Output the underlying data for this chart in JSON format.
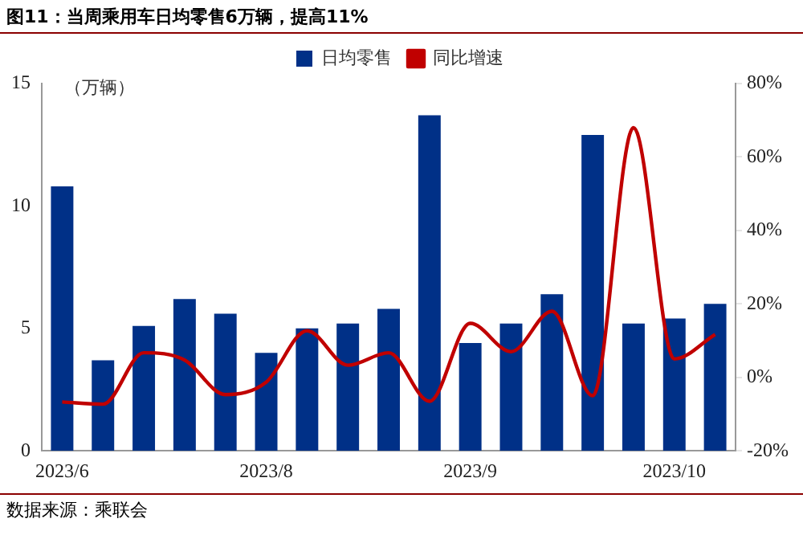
{
  "chart_data": {
    "type": "bar",
    "title": "图11：当周乘用车日均零售6万辆，提高11%",
    "ylabel": "（万辆）",
    "categories": [
      "2023/6",
      null,
      null,
      null,
      null,
      "2023/8",
      null,
      null,
      null,
      null,
      "2023/9",
      null,
      null,
      null,
      null,
      "2023/10",
      null
    ],
    "series": [
      {
        "name": "日均零售",
        "color": "#003087",
        "values": [
          10.8,
          3.7,
          5.1,
          6.2,
          5.6,
          4.0,
          5.0,
          5.2,
          5.8,
          13.7,
          4.4,
          5.2,
          6.4,
          12.9,
          5.2,
          5.4,
          6.0
        ]
      },
      {
        "name": "同比增速",
        "type": "line",
        "axis": "y2",
        "color": "#c00000",
        "values": [
          -6.7,
          -7.3,
          6.7,
          4.7,
          -4.7,
          -1.3,
          12.7,
          3.3,
          6.7,
          -6.5,
          14.7,
          7,
          18,
          -5,
          68,
          5,
          11.7
        ]
      }
    ],
    "ylim": [
      0,
      15
    ],
    "yticks": [
      0,
      5,
      10,
      15
    ],
    "y2lim": [
      -20,
      80
    ],
    "y2ticks": [
      {
        "value": -20,
        "label": "-20%"
      },
      {
        "value": 0,
        "label": "0%"
      },
      {
        "value": 20,
        "label": "20%"
      },
      {
        "value": 40,
        "label": "40%"
      },
      {
        "value": 60,
        "label": "60%"
      },
      {
        "value": 80,
        "label": "80%"
      }
    ],
    "grid": false,
    "legend": "top",
    "marker": "none",
    "line_style": "solid",
    "annotations": [
      "数据来源：乘联会"
    ]
  }
}
